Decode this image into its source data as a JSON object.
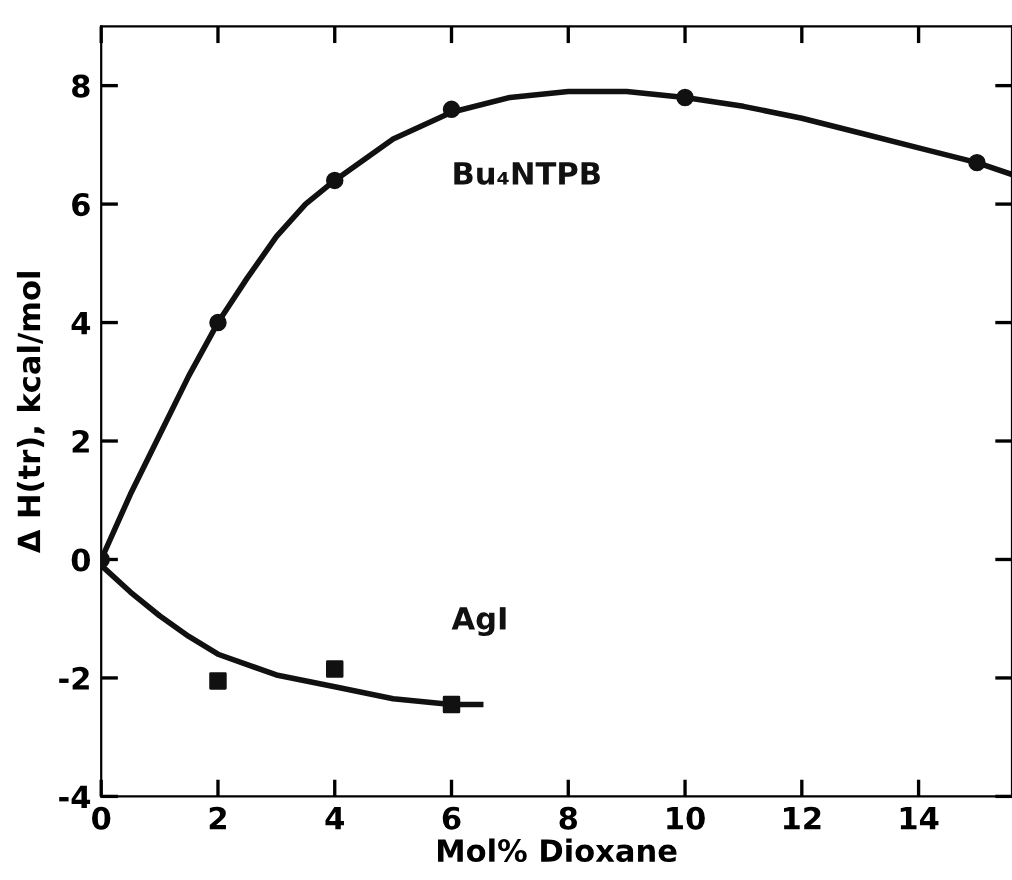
{
  "chart_data": {
    "type": "scatter",
    "xlabel": "Mol% Dioxane",
    "ylabel": "Δ H(tr), kcal/mol",
    "xlim": [
      0,
      15.6
    ],
    "xticks": [
      0,
      2,
      4,
      6,
      8,
      10,
      12,
      14
    ],
    "ylim": [
      -4,
      9
    ],
    "yticks": [
      -4,
      -2,
      0,
      2,
      4,
      6,
      8
    ],
    "grid": false,
    "legend": false,
    "series": [
      {
        "name": "Bu₄NTPB",
        "marker": "circle",
        "color": "#111111",
        "x": [
          0,
          2,
          4,
          6,
          10,
          15
        ],
        "values": [
          0,
          4.0,
          6.4,
          7.6,
          7.8,
          6.7
        ]
      },
      {
        "type": "line",
        "color": "#111111",
        "line_style": "solid",
        "x": [
          0,
          0.5,
          1,
          1.5,
          2,
          2.5,
          3,
          3.5,
          4,
          5,
          6,
          7,
          8,
          9,
          10,
          11,
          12,
          13,
          14,
          15,
          15.6
        ],
        "values": [
          0,
          1.1,
          2.1,
          3.1,
          4.0,
          4.75,
          5.45,
          6.0,
          6.4,
          7.1,
          7.55,
          7.8,
          7.9,
          7.9,
          7.8,
          7.65,
          7.45,
          7.2,
          6.95,
          6.7,
          6.5
        ]
      },
      {
        "name": "AgI",
        "marker": "square",
        "color": "#111111",
        "x": [
          2,
          4,
          6
        ],
        "values": [
          -2.05,
          -1.85,
          -2.45
        ]
      },
      {
        "type": "line",
        "color": "#111111",
        "line_style": "solid",
        "x": [
          0,
          0.5,
          1,
          1.5,
          2,
          3,
          4,
          5,
          6,
          6.5
        ],
        "values": [
          -0.1,
          -0.55,
          -0.95,
          -1.3,
          -1.6,
          -1.95,
          -2.15,
          -2.35,
          -2.45,
          -2.45
        ]
      }
    ]
  }
}
